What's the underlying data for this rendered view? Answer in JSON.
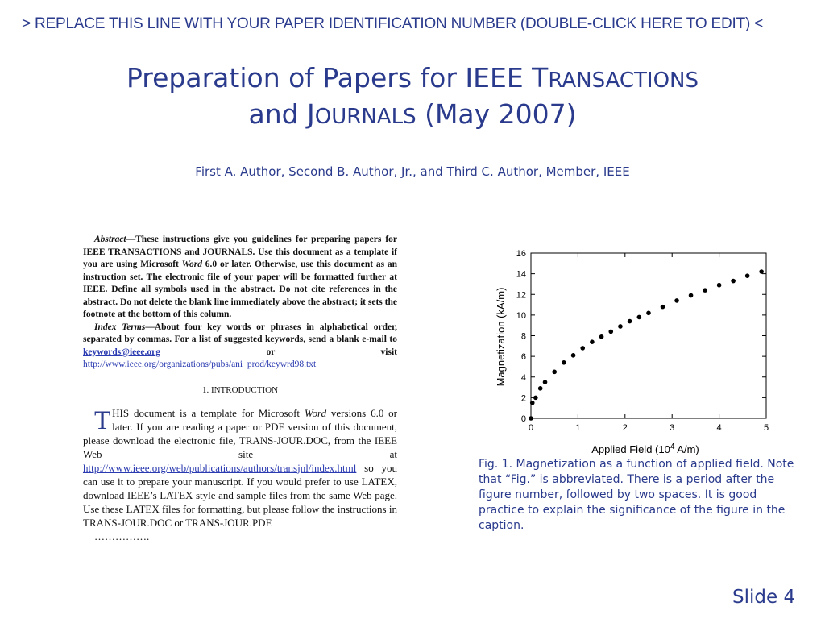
{
  "header": {
    "paper_id_line": "> REPLACE THIS LINE WITH YOUR PAPER IDENTIFICATION NUMBER (DOUBLE-CLICK HERE TO EDIT) <"
  },
  "title": {
    "line1_main": "Preparation of Papers for IEEE T",
    "line1_sc": "RANSACTIONS",
    "line2_pre": "and J",
    "line2_sc": "OURNALS",
    "line2_post": " (May 2007)"
  },
  "authors": "First A. Author, Second B. Author, Jr., and Third C. Author, Member, IEEE",
  "abstract": {
    "lead": "Abstract",
    "text": "—These instructions give you guidelines for preparing papers for IEEE TRANSACTIONS and JOURNALS. Use this document as a template if you are using Microsoft ",
    "word": "Word",
    "text2": " 6.0 or later. Otherwise, use this document as an instruction set. The electronic file of your paper will be formatted further at IEEE. Define all symbols used in the abstract. Do not cite references in the abstract. Do not delete the blank line immediately above the abstract; it sets the footnote at the bottom of this column."
  },
  "index_terms": {
    "lead": "Index Terms",
    "text": "—About four key words or phrases in alphabetical order, separated by commas. For a list of suggested keywords, send a blank e-mail to ",
    "email": "keywords@ieee.org",
    "text2": " or visit ",
    "url": "http://www.ieee.org/organizations/pubs/ani_prod/keywrd98.txt"
  },
  "intro": {
    "heading": "1. INTRODUCTION",
    "dropcap": "T",
    "text1": "HIS document is a template for Microsoft ",
    "word": "Word",
    "text2": " versions 6.0 or later. If you are reading a paper or PDF version of this document, please download the electronic file, TRANS-JOUR.DOC, from the IEEE Web site at ",
    "url": "http://www.ieee.org/web/publications/authors/transjnl/index.html",
    "text3": " so you can use it to prepare your manuscript. If you would prefer to use LATEX, download IEEE’s LATEX style and sample files from the same Web page. Use these LATEX files for formatting, but please follow the instructions in TRANS-JOUR.DOC or TRANS-JOUR.PDF.",
    "ellipsis": "……………."
  },
  "chart_data": {
    "type": "scatter",
    "title": "",
    "xlabel_pre": "Applied Field (10",
    "xlabel_exp": "4",
    "xlabel_post": " A/m)",
    "ylabel": "Magnetization (kA/m)",
    "xlim": [
      0,
      5
    ],
    "ylim": [
      0,
      16
    ],
    "xticks": [
      "0",
      "1",
      "2",
      "3",
      "4",
      "5"
    ],
    "yticks": [
      "0",
      "2",
      "4",
      "6",
      "8",
      "10",
      "12",
      "14",
      "16"
    ],
    "grid": false,
    "x": [
      0.0,
      0.03,
      0.1,
      0.2,
      0.3,
      0.5,
      0.7,
      0.9,
      1.1,
      1.3,
      1.5,
      1.7,
      1.9,
      2.1,
      2.3,
      2.5,
      2.8,
      3.1,
      3.4,
      3.7,
      4.0,
      4.3,
      4.6,
      4.9
    ],
    "y": [
      0.0,
      1.5,
      2.0,
      2.9,
      3.5,
      4.5,
      5.4,
      6.1,
      6.8,
      7.4,
      7.9,
      8.4,
      8.9,
      9.4,
      9.8,
      10.2,
      10.8,
      11.4,
      11.9,
      12.4,
      12.9,
      13.3,
      13.8,
      14.2
    ],
    "series_color": "#000000"
  },
  "caption": "Fig. 1.  Magnetization as a function of applied field. Note that “Fig.” is abbreviated. There is a period after the figure number, followed by two spaces. It is good practice to explain the significance of the figure in the caption.",
  "slide_number": "Slide 4"
}
